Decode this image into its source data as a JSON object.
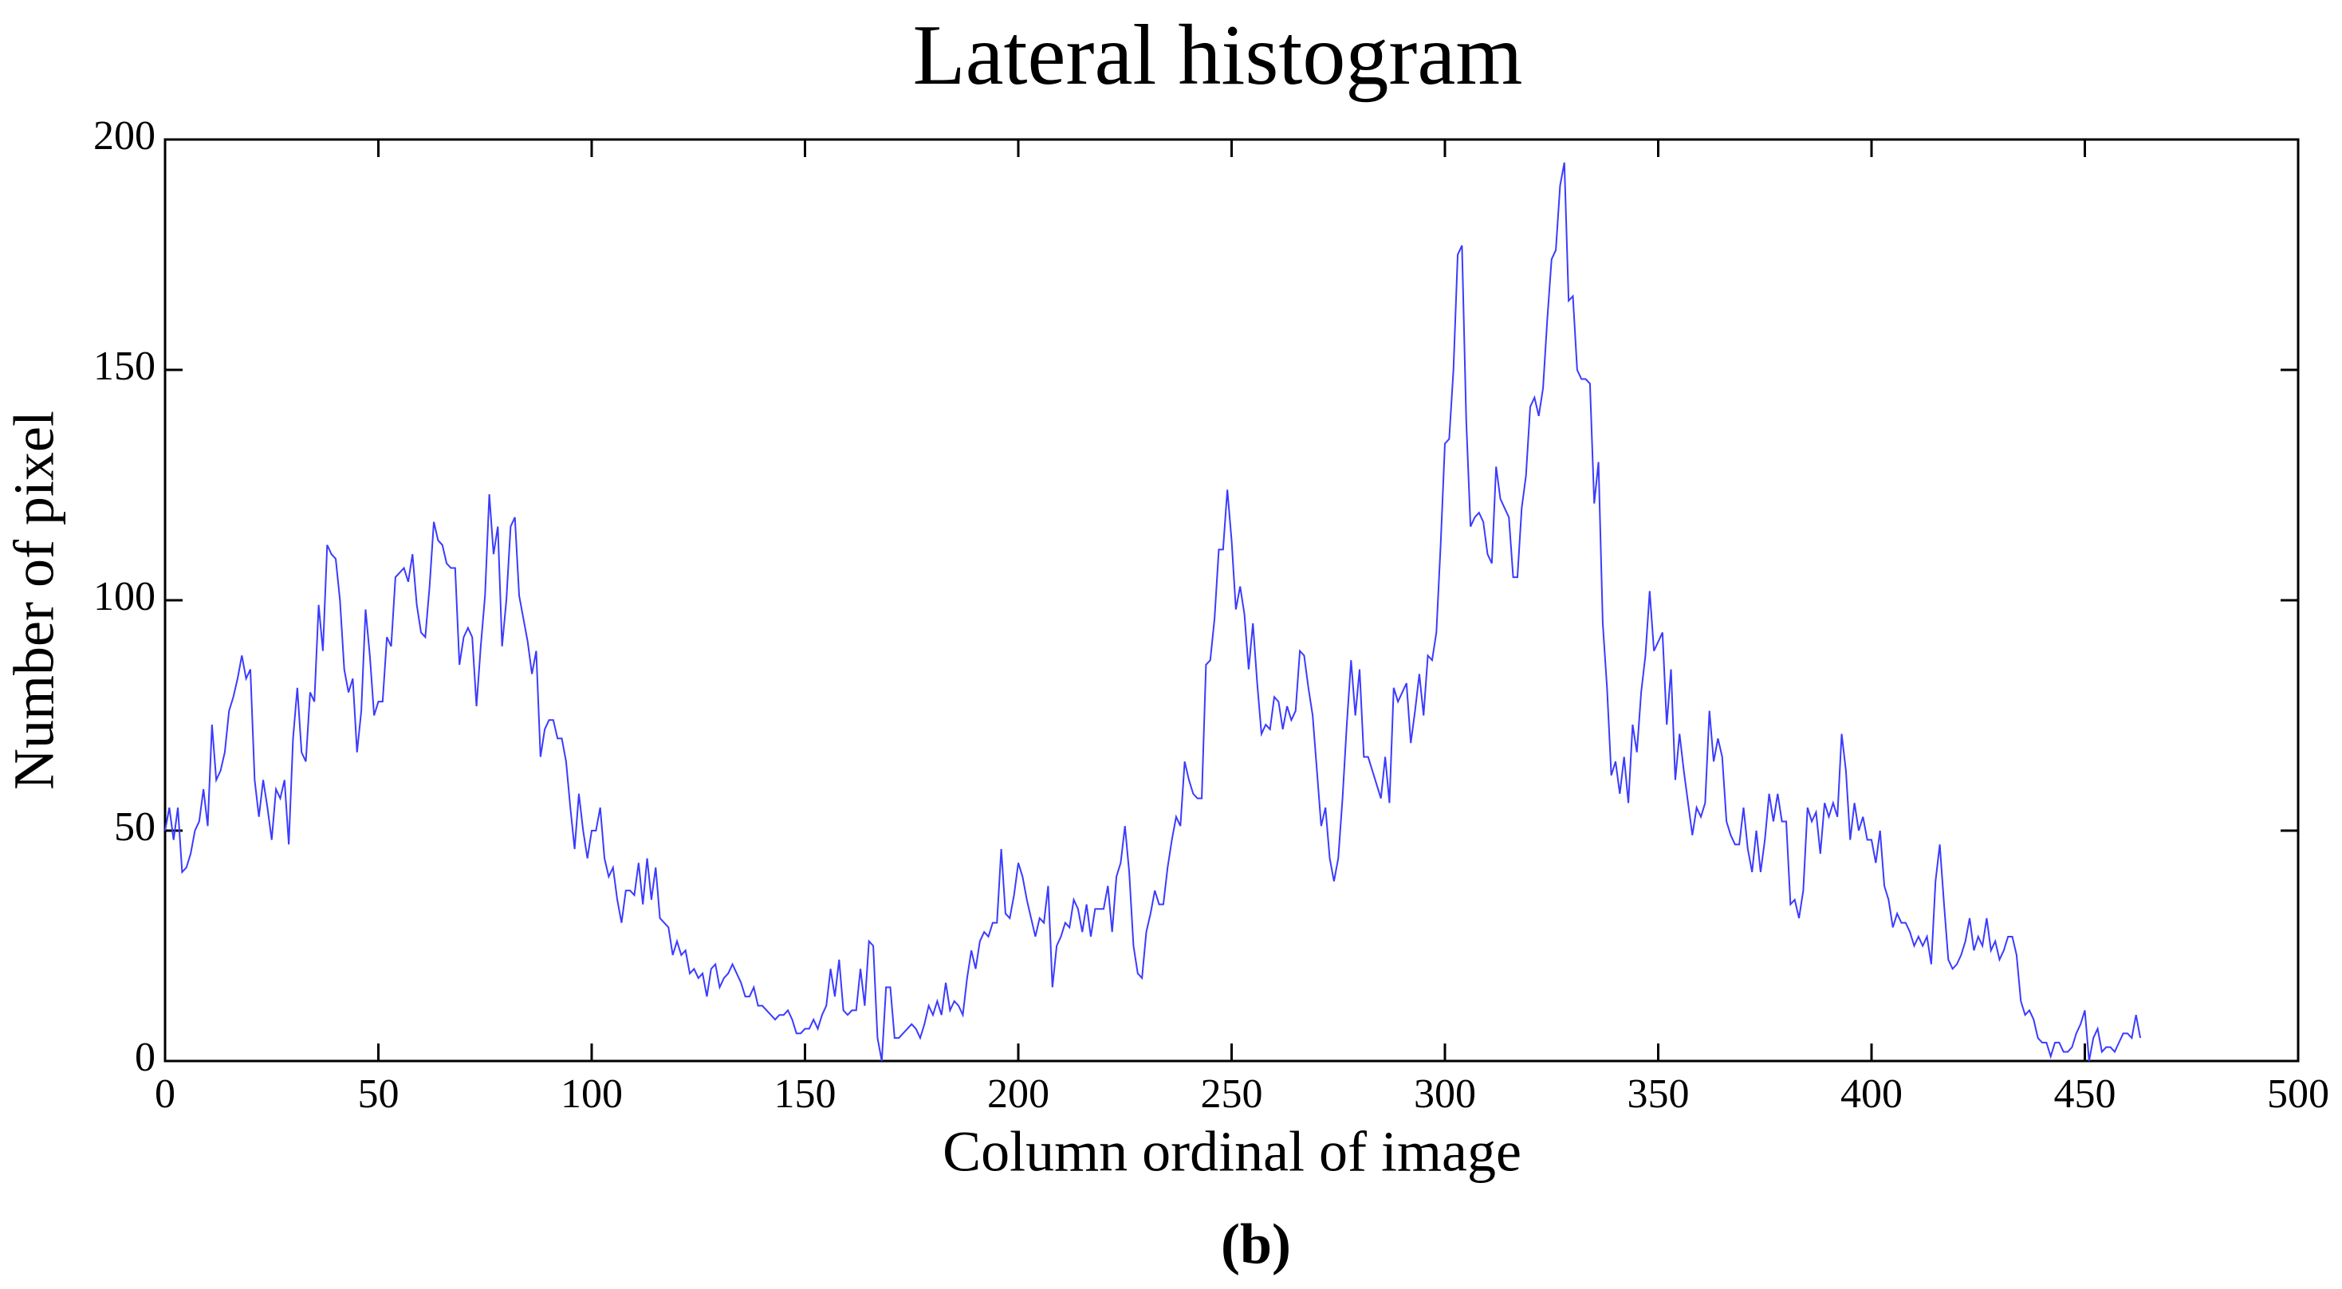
{
  "chart_data": {
    "type": "line",
    "title": "Lateral histogram",
    "xlabel": "Column ordinal of image",
    "ylabel": "Number of pixel",
    "caption": "(b)",
    "color": "#3b3bff",
    "xlim": [
      0,
      500
    ],
    "xticks": [
      0,
      50,
      100,
      150,
      200,
      250,
      300,
      350,
      400,
      450,
      500
    ],
    "ylim": [
      0,
      200
    ],
    "yticks": [
      0,
      50,
      100,
      150,
      200
    ],
    "grid": false,
    "x": [
      0,
      1,
      2,
      3,
      4,
      5,
      6,
      7,
      8,
      9,
      10,
      11,
      12,
      13,
      14,
      15,
      16,
      17,
      18,
      19,
      20,
      21,
      22,
      23,
      24,
      25,
      26,
      27,
      28,
      29,
      30,
      31,
      32,
      33,
      34,
      35,
      36,
      37,
      38,
      39,
      40,
      41,
      42,
      43,
      44,
      45,
      46,
      47,
      48,
      49,
      50,
      51,
      52,
      53,
      54,
      55,
      56,
      57,
      58,
      59,
      60,
      61,
      62,
      63,
      64,
      65,
      66,
      67,
      68,
      69,
      70,
      71,
      72,
      73,
      74,
      75,
      76,
      77,
      78,
      79,
      80,
      81,
      82,
      83,
      84,
      85,
      86,
      87,
      88,
      89,
      90,
      91,
      92,
      93,
      94,
      95,
      96,
      97,
      98,
      99,
      100,
      101,
      102,
      103,
      104,
      105,
      106,
      107,
      108,
      109,
      110,
      111,
      112,
      113,
      114,
      115,
      116,
      117,
      118,
      119,
      120,
      121,
      122,
      123,
      124,
      125,
      126,
      127,
      128,
      129,
      130,
      131,
      132,
      133,
      134,
      135,
      136,
      137,
      138,
      139,
      140,
      141,
      142,
      143,
      144,
      145,
      146,
      147,
      148,
      149,
      150,
      151,
      152,
      153,
      154,
      155,
      156,
      157,
      158,
      159,
      160,
      161,
      162,
      163,
      164,
      165,
      166,
      167,
      168,
      169,
      170,
      171,
      172,
      173,
      174,
      175,
      176,
      177,
      178,
      179,
      180,
      181,
      182,
      183,
      184,
      185,
      186,
      187,
      188,
      189,
      190,
      191,
      192,
      193,
      194,
      195,
      196,
      197,
      198,
      199,
      200,
      201,
      202,
      203,
      204,
      205,
      206,
      207,
      208,
      209,
      210,
      211,
      212,
      213,
      214,
      215,
      216,
      217,
      218,
      219,
      220,
      221,
      222,
      223,
      224,
      225,
      226,
      227,
      228,
      229,
      230,
      231,
      232,
      233,
      234,
      235,
      236,
      237,
      238,
      239,
      240,
      241,
      242,
      243,
      244,
      245,
      246,
      247,
      248,
      249,
      250,
      251,
      252,
      253,
      254,
      255,
      256,
      257,
      258,
      259,
      260,
      261,
      262,
      263,
      264,
      265,
      266,
      267,
      268,
      269,
      270,
      271,
      272,
      273,
      274,
      275,
      276,
      277,
      278,
      279,
      280,
      281,
      282,
      283,
      284,
      285,
      286,
      287,
      288,
      289,
      290,
      291,
      292,
      293,
      294,
      295,
      296,
      297,
      298,
      299,
      300,
      301,
      302,
      303,
      304,
      305,
      306,
      307,
      308,
      309,
      310,
      311,
      312,
      313,
      314,
      315,
      316,
      317,
      318,
      319,
      320,
      321,
      322,
      323,
      324,
      325,
      326,
      327,
      328,
      329,
      330,
      331,
      332,
      333,
      334,
      335,
      336,
      337,
      338,
      339,
      340,
      341,
      342,
      343,
      344,
      345,
      346,
      347,
      348,
      349,
      350,
      351,
      352,
      353,
      354,
      355,
      356,
      357,
      358,
      359,
      360,
      361,
      362,
      363,
      364,
      365,
      366,
      367,
      368,
      369,
      370,
      371,
      372,
      373,
      374,
      375,
      376,
      377,
      378,
      379,
      380,
      381,
      382,
      383,
      384,
      385,
      386,
      387,
      388,
      389,
      390,
      391,
      392,
      393,
      394,
      395,
      396,
      397,
      398,
      399,
      400,
      401,
      402,
      403,
      404,
      405,
      406,
      407,
      408,
      409,
      410,
      411,
      412,
      413,
      414,
      415,
      416,
      417,
      418,
      419,
      420,
      421,
      422,
      423,
      424,
      425,
      426,
      427,
      428,
      429,
      430,
      431,
      432,
      433,
      434,
      435,
      436,
      437,
      438,
      439,
      440,
      441,
      442,
      443,
      444,
      445,
      446,
      447,
      448,
      449,
      450,
      451,
      452,
      453,
      454,
      455,
      456,
      457,
      458,
      459,
      460,
      461,
      462,
      463
    ],
    "values": [
      50,
      55,
      48,
      55,
      41,
      42,
      45,
      50,
      52,
      59,
      51,
      73,
      61,
      63,
      67,
      76,
      79,
      83,
      88,
      83,
      85,
      61,
      53,
      61,
      55,
      48,
      59,
      57,
      61,
      47,
      70,
      81,
      67,
      65,
      80,
      78,
      99,
      89,
      112,
      110,
      109,
      100,
      85,
      80,
      83,
      67,
      76,
      98,
      88,
      75,
      78,
      78,
      92,
      90,
      105,
      106,
      107,
      104,
      110,
      99,
      93,
      92,
      103,
      117,
      113,
      112,
      108,
      107,
      107,
      86,
      92,
      94,
      92,
      77,
      90,
      101,
      123,
      110,
      116,
      90,
      100,
      116,
      118,
      101,
      96,
      91,
      84,
      89,
      66,
      72,
      74,
      74,
      70,
      70,
      65,
      55,
      46,
      58,
      50,
      44,
      50,
      50,
      55,
      44,
      40,
      42,
      35,
      30,
      37,
      37,
      36,
      43,
      34,
      44,
      35,
      42,
      31,
      30,
      29,
      23,
      26,
      23,
      24,
      19,
      20,
      18,
      19,
      14,
      20,
      21,
      16,
      18,
      19,
      21,
      19,
      17,
      14,
      14,
      16,
      12,
      12,
      11,
      10,
      9,
      10,
      10,
      11,
      9,
      6,
      6,
      7,
      7,
      9,
      7,
      10,
      12,
      20,
      14,
      22,
      11,
      10,
      11,
      11,
      20,
      12,
      26,
      25,
      5,
      0,
      16,
      16,
      5,
      5,
      6,
      7,
      8,
      7,
      5,
      8,
      12,
      10,
      13,
      10,
      17,
      11,
      13,
      12,
      10,
      18,
      24,
      20,
      26,
      28,
      27,
      30,
      30,
      46,
      32,
      31,
      36,
      43,
      40,
      35,
      31,
      27,
      31,
      30,
      38,
      16,
      25,
      27,
      30,
      29,
      35,
      33,
      28,
      34,
      27,
      33,
      33,
      33,
      38,
      28,
      40,
      43,
      51,
      41,
      25,
      19,
      18,
      28,
      32,
      37,
      34,
      34,
      42,
      48,
      53,
      51,
      65,
      61,
      58,
      57,
      57,
      86,
      87,
      96,
      111,
      111,
      124,
      113,
      98,
      103,
      97,
      85,
      95,
      82,
      71,
      73,
      72,
      79,
      78,
      72,
      77,
      74,
      76,
      89,
      88,
      81,
      75,
      63,
      51,
      55,
      44,
      39,
      44,
      57,
      73,
      87,
      75,
      85,
      66,
      66,
      63,
      60,
      57,
      66,
      56,
      81,
      78,
      80,
      82,
      69,
      76,
      84,
      75,
      88,
      87,
      93,
      112,
      134,
      135,
      150,
      175,
      177,
      139,
      116,
      118,
      119,
      117,
      110,
      108,
      129,
      122,
      120,
      118,
      105,
      105,
      120,
      127,
      142,
      144,
      140,
      146,
      161,
      174,
      176,
      190,
      195,
      165,
      166,
      150,
      148,
      148,
      147,
      121,
      130,
      95,
      81,
      62,
      65,
      58,
      66,
      56,
      73,
      67,
      80,
      88,
      102,
      89,
      91,
      93,
      73,
      85,
      61,
      71,
      63,
      56,
      49,
      55,
      53,
      56,
      76,
      65,
      70,
      66,
      52,
      49,
      47,
      47,
      55,
      46,
      41,
      50,
      41,
      48,
      58,
      52,
      58,
      52,
      52,
      34,
      35,
      31,
      37,
      55,
      52,
      54,
      45,
      56,
      53,
      56,
      53,
      71,
      63,
      48,
      56,
      50,
      53,
      48,
      48,
      43,
      50,
      38,
      35,
      29,
      32,
      30,
      30,
      28,
      25,
      27,
      25,
      27,
      21,
      39,
      47,
      34,
      22,
      20,
      21,
      23,
      26,
      31,
      24,
      27,
      25,
      31,
      24,
      26,
      22,
      24,
      27,
      27,
      23,
      13,
      10,
      11,
      9,
      5,
      4,
      4,
      1,
      4,
      4,
      2,
      2,
      3,
      6,
      8,
      11,
      0,
      5,
      7,
      2,
      3,
      3,
      2,
      4,
      6,
      6,
      5,
      10,
      5
    ]
  }
}
